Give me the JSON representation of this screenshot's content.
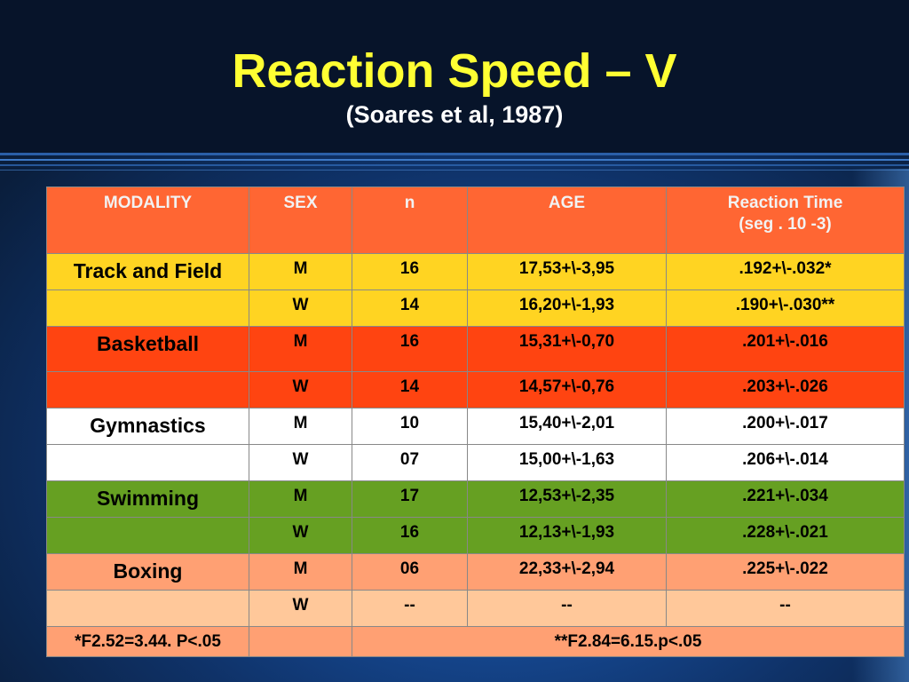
{
  "slide": {
    "title": "Reaction Speed – V",
    "subtitle": "(Soares et al, 1987)"
  },
  "table": {
    "headers": [
      "MODALITY",
      "SEX",
      "n",
      "AGE",
      "Reaction Time",
      "(seg . 10 -3)"
    ],
    "rows": [
      {
        "modality": "Track and Field",
        "sex": "M",
        "n": "16",
        "age": "17,53+\\-3,95",
        "rt": ".192+\\-.032*"
      },
      {
        "modality": "",
        "sex": "W",
        "n": "14",
        "age": "16,20+\\-1,93",
        "rt": ".190+\\-.030**"
      },
      {
        "modality": "Basketball",
        "sex": "M",
        "n": "16",
        "age": "15,31+\\-0,70",
        "rt": ".201+\\-.016"
      },
      {
        "modality": "",
        "sex": "W",
        "n": "14",
        "age": "14,57+\\-0,76",
        "rt": ".203+\\-.026"
      },
      {
        "modality": "Gymnastics",
        "sex": "M",
        "n": "10",
        "age": "15,40+\\-2,01",
        "rt": ".200+\\-.017"
      },
      {
        "modality": "",
        "sex": "W",
        "n": "07",
        "age": "15,00+\\-1,63",
        "rt": ".206+\\-.014"
      },
      {
        "modality": "Swimming",
        "sex": "M",
        "n": "17",
        "age": "12,53+\\-2,35",
        "rt": ".221+\\-.034"
      },
      {
        "modality": "",
        "sex": "W",
        "n": "16",
        "age": "12,13+\\-1,93",
        "rt": ".228+\\-.021"
      },
      {
        "modality": "Boxing",
        "sex": "M",
        "n": "06",
        "age": "22,33+\\-2,94",
        "rt": ".225+\\-.022"
      },
      {
        "modality": "",
        "sex": "W",
        "n": "--",
        "age": "--",
        "rt": "--"
      }
    ],
    "footer": {
      "note1": "*F2.52=3.44. P<.05",
      "note2": "**F2.84=6.15.p<.05"
    }
  },
  "colors": {
    "title": "#ffff33",
    "header": "#ff6633",
    "track_and_field": "#ffd422",
    "basketball": "#ff4411",
    "gymnastics": "#ffffff",
    "swimming": "#66a022",
    "boxing_m": "#ffa073",
    "boxing_w": "#ffc89a"
  }
}
